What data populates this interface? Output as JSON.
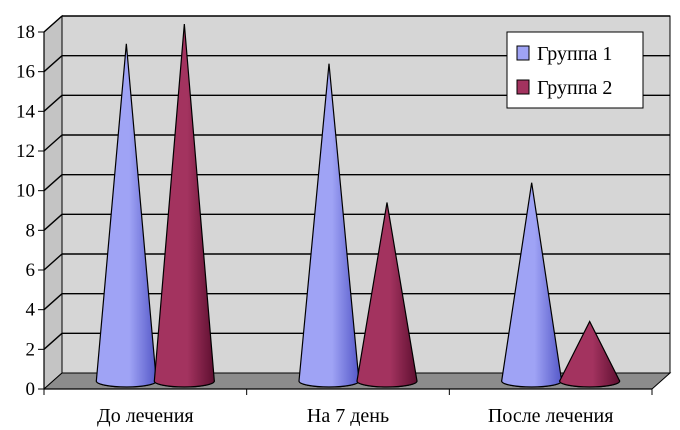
{
  "chart_data": {
    "type": "bar",
    "style": "3d-cone",
    "categories": [
      "До лечения",
      "На 7 день",
      "После лечения"
    ],
    "series": [
      {
        "name": "Группа 1",
        "values": [
          17,
          16,
          10
        ],
        "color": "#9fa3f5",
        "color_dark": "#5558c8"
      },
      {
        "name": "Группа 2",
        "values": [
          18,
          9,
          3
        ],
        "color": "#a3335f",
        "color_dark": "#5e0f30"
      }
    ],
    "yticks": [
      0,
      2,
      4,
      6,
      8,
      10,
      12,
      14,
      16,
      18
    ],
    "ylim": [
      0,
      18
    ],
    "grid": true,
    "legend": "top-right",
    "wall_color": "#d6d6d6",
    "floor_color": "#8c8c8c"
  }
}
